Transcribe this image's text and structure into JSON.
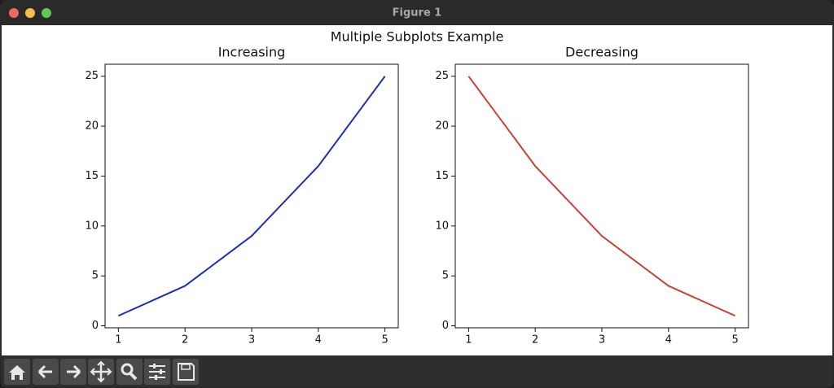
{
  "window": {
    "title": "Figure 1"
  },
  "suptitle": "Multiple Subplots Example",
  "chart_data": [
    {
      "type": "line",
      "title": "Increasing",
      "x": [
        1,
        2,
        3,
        4,
        5
      ],
      "values": [
        1,
        4,
        9,
        16,
        25
      ],
      "color": "#1f30b4",
      "xlim": [
        0.8,
        5.2
      ],
      "ylim": [
        -0.2,
        26.2
      ],
      "xticks": [
        1,
        2,
        3,
        4,
        5
      ],
      "yticks": [
        0,
        5,
        10,
        15,
        20,
        25
      ]
    },
    {
      "type": "line",
      "title": "Decreasing",
      "x": [
        1,
        2,
        3,
        4,
        5
      ],
      "values": [
        25,
        16,
        9,
        4,
        1
      ],
      "color": "#c9433b",
      "xlim": [
        0.8,
        5.2
      ],
      "ylim": [
        -0.2,
        26.2
      ],
      "xticks": [
        1,
        2,
        3,
        4,
        5
      ],
      "yticks": [
        0,
        5,
        10,
        15,
        20,
        25
      ]
    }
  ]
}
